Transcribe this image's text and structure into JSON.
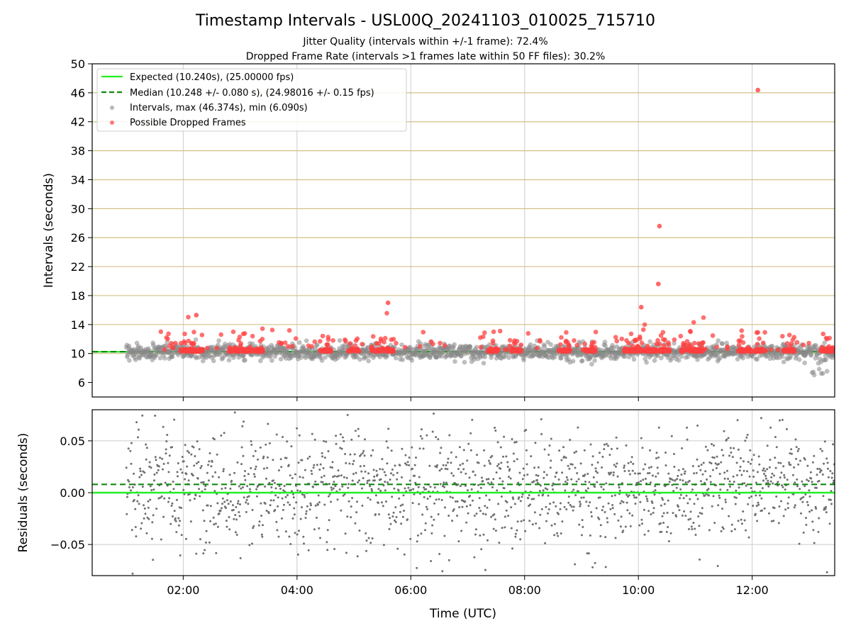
{
  "chart_data": {
    "type": "scatter",
    "title": "Timestamp Intervals - USL00Q_20241103_010025_715710",
    "subtitle_lines": [
      "Jitter Quality (intervals within +/-1 frame): 72.4%",
      "Dropped Frame Rate (intervals >1 frames late within 50 FF files): 30.2%"
    ],
    "xlabel": "Time (UTC)",
    "x_tick_labels": [
      "02:00",
      "04:00",
      "06:00",
      "08:00",
      "10:00",
      "12:00"
    ],
    "x_range_hours": [
      0.4,
      13.45
    ],
    "x_tick_hours": [
      2,
      4,
      6,
      8,
      10,
      12
    ],
    "data_start_hour": 1.0,
    "panels": {
      "intervals": {
        "ylabel": "Intervals (seconds)",
        "ylim": [
          4.0,
          50.0
        ],
        "y_ticks": [
          6,
          10,
          14,
          18,
          22,
          26,
          30,
          34,
          38,
          42,
          46,
          50
        ],
        "h_gridlines": [
          10,
          14,
          18,
          22,
          26,
          30,
          34,
          38,
          42,
          46
        ],
        "expected": 10.24,
        "median": 10.248,
        "max": 46.374,
        "min": 6.09,
        "dropped_outliers": [
          {
            "t": 2.23,
            "v": 15.3
          },
          {
            "t": 5.6,
            "v": 17.0
          },
          {
            "t": 10.05,
            "v": 16.4
          },
          {
            "t": 10.35,
            "v": 19.6
          },
          {
            "t": 10.37,
            "v": 27.6
          },
          {
            "t": 12.1,
            "v": 46.374
          }
        ]
      },
      "residuals": {
        "ylabel": "Residuals (seconds)",
        "ylim": [
          -0.08,
          0.08
        ],
        "y_ticks": [
          0.05,
          0.0,
          -0.05
        ],
        "y_tick_labels": [
          "0.05",
          "0.00",
          "−0.05"
        ],
        "expected_residual": 0.0,
        "median_residual": 0.008
      }
    },
    "grid": true,
    "legend": {
      "placement": "upper-left",
      "entries": [
        {
          "label": "Expected (10.240s), (25.00000 fps)",
          "style": "solid-line",
          "color": "#22ee22"
        },
        {
          "label": "Median (10.248 +/- 0.080 s), (24.98016 +/- 0.15 fps)",
          "style": "dashed-line",
          "color": "#118811"
        },
        {
          "label": "Intervals, max (46.374s), min (6.090s)",
          "style": "marker",
          "color": "#888888"
        },
        {
          "label": "Possible Dropped Frames",
          "style": "marker",
          "color": "#ff4040"
        }
      ]
    },
    "colors": {
      "expected": "#22ee22",
      "median": "#118811",
      "interval_points": "#888888",
      "dropped_points": "#ff4040",
      "residual_points": "#707070",
      "interval_grid": "#d2c088",
      "grid": "#cccccc"
    }
  }
}
